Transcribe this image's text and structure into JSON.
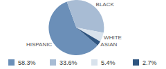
{
  "chart_data": {
    "type": "pie",
    "categories": [
      "HISPANIC",
      "BLACK",
      "WHITE",
      "ASIAN"
    ],
    "values": [
      58.3,
      33.6,
      5.4,
      2.7
    ],
    "value_labels": [
      "58.3%",
      "33.6%",
      "5.4%",
      "2.7%"
    ],
    "colors": [
      "#6b8fb8",
      "#a8bcd4",
      "#d8e2ec",
      "#2f5580"
    ],
    "legend": "bottom"
  }
}
